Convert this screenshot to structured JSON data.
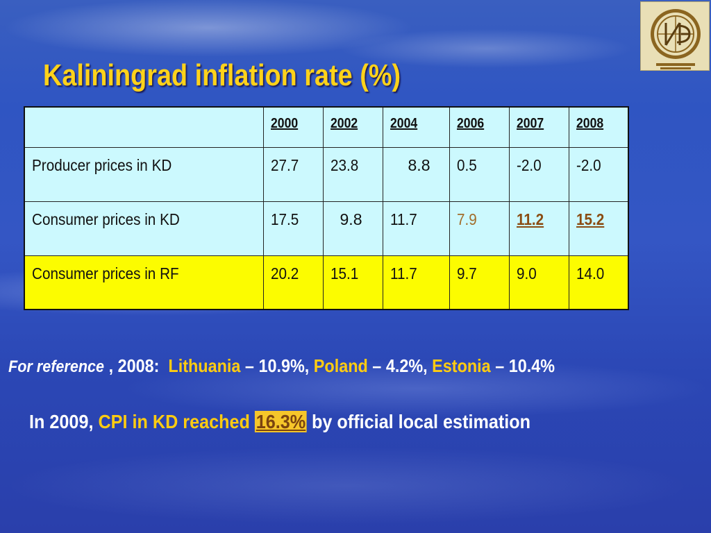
{
  "slide": {
    "title": "Kaliningrad inflation rate (%)"
  },
  "table": {
    "years": [
      "2000",
      "2002",
      "2004",
      "2006",
      "2007",
      "2008"
    ],
    "rows": [
      {
        "label": "Producer prices in KD",
        "values": [
          "27.7",
          "23.8",
          "8.8",
          "0.5",
          "-2.0",
          "-2.0"
        ]
      },
      {
        "label": "Consumer prices in KD",
        "values": [
          "17.5",
          "9.8",
          "11.7",
          "7.9",
          "11.2",
          "15.2"
        ]
      },
      {
        "label": "Consumer prices in RF",
        "values": [
          "20.2",
          "15.1",
          "11.7",
          "9.7",
          "9.0",
          "14.0"
        ]
      }
    ]
  },
  "reference": {
    "prefix": "For  reference",
    "sep": " ,  ",
    "year": "2008:",
    "country1": "Lithuania",
    "value1": " – 10.9%, ",
    "country2": "Poland",
    "value2": " – 4.2%, ",
    "country3": "Estonia",
    "value3": " – 10.4%"
  },
  "cpi_note": {
    "prefix": "In 2009, ",
    "highlight1": "CPI  in KD reached ",
    "highlight2": "16.3%",
    "suffix": " by official local estimation"
  },
  "colors": {
    "title": "#ffd21a",
    "table_bg": "#ccf9fe",
    "rf_row_bg": "#fcfc00",
    "accent": "#ffcc11"
  },
  "logo": {
    "icon": "institute-logo-icon"
  }
}
